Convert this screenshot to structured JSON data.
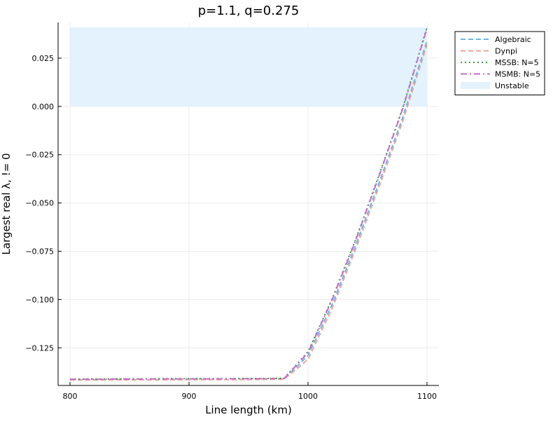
{
  "chart_data": {
    "type": "line",
    "title": "p=1.1, q=0.275",
    "xlabel": "Line length (km)",
    "ylabel": "Largest real λ, != 0",
    "xlim": [
      790,
      1110
    ],
    "ylim": [
      -0.1445,
      0.0435
    ],
    "x_ticks": [
      800,
      900,
      1000,
      1100
    ],
    "x_tick_labels": [
      "800",
      "900",
      "1000",
      "1100"
    ],
    "y_ticks": [
      -0.125,
      -0.1,
      -0.075,
      -0.05,
      -0.025,
      0.0,
      0.025
    ],
    "y_tick_labels": [
      "−0.125",
      "−0.100",
      "−0.075",
      "−0.050",
      "−0.025",
      "0.000",
      "0.025"
    ],
    "grid": true,
    "legend_position": "top-right",
    "unstable_region": {
      "x": [
        800,
        1100
      ],
      "y": [
        0.0,
        0.041
      ],
      "color": "#e3f2fd",
      "label": "Unstable"
    },
    "series": [
      {
        "name": "Algebraic",
        "color": "#6cb5e8",
        "dash": "dashed",
        "x": [
          800,
          820,
          840,
          860,
          880,
          900,
          920,
          940,
          960,
          980,
          1000,
          1020,
          1040,
          1060,
          1080,
          1100
        ],
        "y": [
          -0.1416,
          -0.1416,
          -0.1415,
          -0.1415,
          -0.1414,
          -0.1414,
          -0.1414,
          -0.1414,
          -0.1413,
          -0.1412,
          -0.129,
          -0.103,
          -0.072,
          -0.039,
          -0.005,
          0.034
        ]
      },
      {
        "name": "Dynpi",
        "color": "#e8a69b",
        "dash": "dashed",
        "x": [
          800,
          820,
          840,
          860,
          880,
          900,
          920,
          940,
          960,
          980,
          1000,
          1020,
          1040,
          1060,
          1080,
          1100
        ],
        "y": [
          -0.1417,
          -0.1417,
          -0.1416,
          -0.1416,
          -0.1416,
          -0.1415,
          -0.1415,
          -0.1415,
          -0.1414,
          -0.1413,
          -0.131,
          -0.105,
          -0.074,
          -0.041,
          -0.007,
          0.032
        ]
      },
      {
        "name": "MSSB: N=5",
        "color": "#3a9b3a",
        "dash": "dotted",
        "x": [
          800,
          820,
          840,
          860,
          880,
          900,
          920,
          940,
          960,
          980,
          1000,
          1020,
          1040,
          1060,
          1080,
          1100
        ],
        "y": [
          -0.1412,
          -0.1412,
          -0.1411,
          -0.1411,
          -0.141,
          -0.141,
          -0.141,
          -0.1409,
          -0.1409,
          -0.1408,
          -0.127,
          -0.1,
          -0.069,
          -0.035,
          0.0,
          0.041
        ]
      },
      {
        "name": "MSMB: N=5",
        "color": "#c76bc7",
        "dash": "dashdot",
        "x": [
          800,
          820,
          840,
          860,
          880,
          900,
          920,
          940,
          960,
          980,
          1000,
          1020,
          1040,
          1060,
          1080,
          1100
        ],
        "y": [
          -0.1413,
          -0.1413,
          -0.1412,
          -0.1412,
          -0.1411,
          -0.1411,
          -0.1411,
          -0.141,
          -0.141,
          -0.1409,
          -0.1275,
          -0.1005,
          -0.0695,
          -0.0355,
          -0.0005,
          0.0405
        ]
      }
    ]
  }
}
